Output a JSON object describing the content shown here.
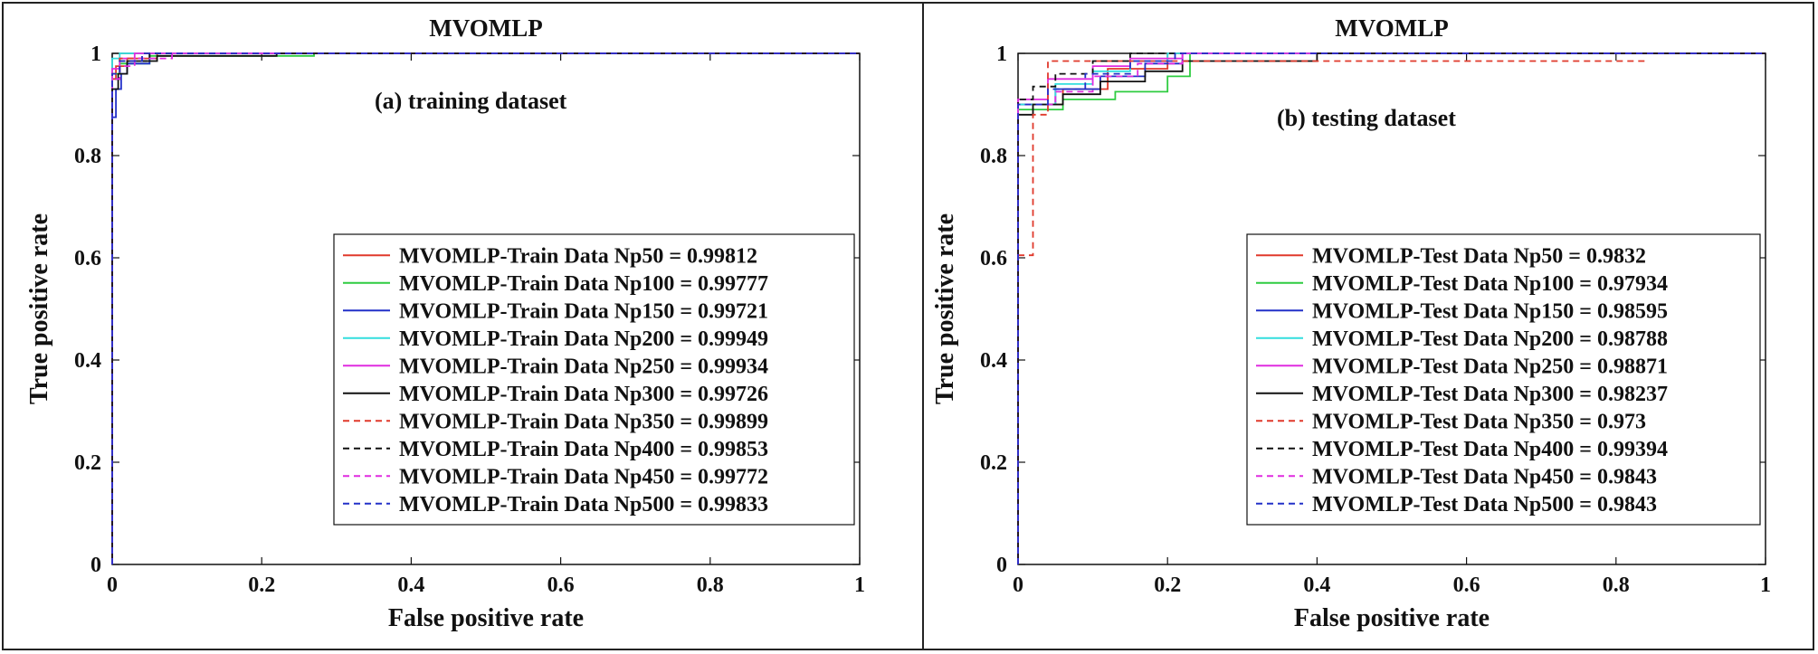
{
  "colors": {
    "Np50": "#e0392b",
    "Np100": "#2ecc40",
    "Np150": "#2230c8",
    "Np200": "#33dede",
    "Np250": "#e02ce0",
    "Np300": "#111111",
    "Np350": "#e0392b",
    "Np400": "#111111",
    "Np450": "#e02ce0",
    "Np500": "#2230c8"
  },
  "chart_data": [
    {
      "type": "line",
      "title": "MVOMLP",
      "annotation": "(a) training dataset",
      "xlabel": "False positive rate",
      "ylabel": "True positive rate",
      "xlim": [
        0,
        1
      ],
      "ylim": [
        0,
        1
      ],
      "xticks": [
        "0",
        "0.2",
        "0.4",
        "0.6",
        "0.8",
        "1"
      ],
      "yticks": [
        "0",
        "0.2",
        "0.4",
        "0.6",
        "0.8",
        "1"
      ],
      "grid": false,
      "legend_position": "bottom-right",
      "series": [
        {
          "name": "MVOMLP-Train Data Np50 = 0.99812",
          "color": "#e0392b",
          "dash": "solid",
          "x": [
            0,
            0,
            0.005,
            0.005,
            0.02,
            0.02,
            0.06,
            0.06,
            1
          ],
          "y": [
            0,
            0.95,
            0.95,
            0.975,
            0.975,
            0.99,
            0.99,
            1,
            1
          ]
        },
        {
          "name": "MVOMLP-Train Data Np100 = 0.99777",
          "color": "#2ecc40",
          "dash": "solid",
          "x": [
            0,
            0,
            0.01,
            0.01,
            0.05,
            0.05,
            0.27,
            0.27,
            1
          ],
          "y": [
            0,
            0.96,
            0.96,
            0.98,
            0.98,
            0.995,
            0.995,
            1,
            1
          ]
        },
        {
          "name": "MVOMLP-Train Data Np150 = 0.99721",
          "color": "#2230c8",
          "dash": "solid",
          "x": [
            0,
            0,
            0.005,
            0.005,
            0.012,
            0.012,
            0.02,
            0.02,
            0.05,
            0.05,
            1
          ],
          "y": [
            0,
            0.875,
            0.875,
            0.93,
            0.93,
            0.96,
            0.96,
            0.98,
            0.98,
            1,
            1
          ]
        },
        {
          "name": "MVOMLP-Train Data Np200 = 0.99949",
          "color": "#33dede",
          "dash": "solid",
          "x": [
            0,
            0,
            0.01,
            0.01,
            1
          ],
          "y": [
            0,
            0.99,
            0.99,
            1,
            1
          ]
        },
        {
          "name": "MVOMLP-Train Data Np250 = 0.99934",
          "color": "#e02ce0",
          "dash": "solid",
          "x": [
            0,
            0,
            0.01,
            0.01,
            0.03,
            0.03,
            1
          ],
          "y": [
            0,
            0.97,
            0.97,
            0.99,
            0.99,
            1,
            1
          ]
        },
        {
          "name": "MVOMLP-Train Data Np300 = 0.99726",
          "color": "#111111",
          "dash": "solid",
          "x": [
            0,
            0,
            0.008,
            0.008,
            0.02,
            0.02,
            0.06,
            0.06,
            0.22,
            0.22,
            1
          ],
          "y": [
            0,
            0.93,
            0.93,
            0.96,
            0.96,
            0.985,
            0.985,
            0.995,
            0.995,
            1,
            1
          ]
        },
        {
          "name": "MVOMLP-Train Data Np350 = 0.99899",
          "color": "#e0392b",
          "dash": "dashed",
          "x": [
            0,
            0,
            0.01,
            0.01,
            0.04,
            0.04,
            1
          ],
          "y": [
            0,
            0.96,
            0.96,
            0.99,
            0.99,
            1,
            1
          ]
        },
        {
          "name": "MVOMLP-Train Data Np400 = 0.99853",
          "color": "#111111",
          "dash": "dashed",
          "x": [
            0,
            0,
            0.01,
            0.01,
            0.05,
            0.05,
            1
          ],
          "y": [
            0,
            0.95,
            0.95,
            0.985,
            0.985,
            1,
            1
          ]
        },
        {
          "name": "MVOMLP-Train Data Np450 = 0.99772",
          "color": "#e02ce0",
          "dash": "dashed",
          "x": [
            0,
            0,
            0.01,
            0.01,
            0.03,
            0.03,
            0.08,
            0.08,
            1
          ],
          "y": [
            0,
            0.95,
            0.95,
            0.975,
            0.975,
            0.99,
            0.99,
            1,
            1
          ]
        },
        {
          "name": "MVOMLP-Train Data Np500 = 0.99833",
          "color": "#2230c8",
          "dash": "dashed",
          "x": [
            0,
            0,
            0.01,
            0.01,
            0.04,
            0.04,
            1
          ],
          "y": [
            0,
            0.96,
            0.96,
            0.985,
            0.985,
            1,
            1
          ]
        }
      ]
    },
    {
      "type": "line",
      "title": "MVOMLP",
      "annotation": "(b) testing dataset",
      "xlabel": "False positive rate",
      "ylabel": "True positive rate",
      "xlim": [
        0,
        1
      ],
      "ylim": [
        0,
        1
      ],
      "xticks": [
        "0",
        "0.2",
        "0.4",
        "0.6",
        "0.8",
        "1"
      ],
      "yticks": [
        "0",
        "0.2",
        "0.4",
        "0.6",
        "0.8",
        "1"
      ],
      "grid": false,
      "legend_position": "bottom-right",
      "series": [
        {
          "name": "MVOMLP-Test Data Np50 = 0.9832",
          "color": "#e0392b",
          "dash": "solid",
          "x": [
            0,
            0,
            0.06,
            0.06,
            0.12,
            0.12,
            0.2,
            0.2,
            1
          ],
          "y": [
            0,
            0.9,
            0.9,
            0.93,
            0.93,
            0.97,
            0.97,
            1,
            1
          ]
        },
        {
          "name": "MVOMLP-Test Data Np100 = 0.97934",
          "color": "#2ecc40",
          "dash": "solid",
          "x": [
            0,
            0,
            0.06,
            0.06,
            0.13,
            0.13,
            0.2,
            0.2,
            0.23,
            0.23,
            1
          ],
          "y": [
            0,
            0.89,
            0.89,
            0.91,
            0.91,
            0.925,
            0.925,
            0.955,
            0.955,
            1,
            1
          ]
        },
        {
          "name": "MVOMLP-Test Data Np150 = 0.98595",
          "color": "#2230c8",
          "dash": "solid",
          "x": [
            0,
            0,
            0.05,
            0.05,
            0.11,
            0.11,
            0.17,
            0.17,
            0.22,
            0.22,
            1
          ],
          "y": [
            0,
            0.9,
            0.9,
            0.93,
            0.93,
            0.955,
            0.955,
            0.98,
            0.98,
            1,
            1
          ]
        },
        {
          "name": "MVOMLP-Test Data Np200 = 0.98788",
          "color": "#33dede",
          "dash": "solid",
          "x": [
            0,
            0,
            0.05,
            0.05,
            0.1,
            0.1,
            0.15,
            0.15,
            0.2,
            0.2,
            1
          ],
          "y": [
            0,
            0.9,
            0.9,
            0.94,
            0.94,
            0.965,
            0.965,
            0.985,
            0.985,
            1,
            1
          ]
        },
        {
          "name": "MVOMLP-Test Data Np250 = 0.98871",
          "color": "#e02ce0",
          "dash": "solid",
          "x": [
            0,
            0,
            0.04,
            0.04,
            0.1,
            0.1,
            0.15,
            0.15,
            0.22,
            0.22,
            1
          ],
          "y": [
            0,
            0.91,
            0.91,
            0.95,
            0.95,
            0.975,
            0.975,
            0.99,
            0.99,
            1,
            1
          ]
        },
        {
          "name": "MVOMLP-Test Data Np300 = 0.98237",
          "color": "#111111",
          "dash": "solid",
          "x": [
            0,
            0,
            0.02,
            0.02,
            0.06,
            0.06,
            0.11,
            0.11,
            0.17,
            0.17,
            0.22,
            0.22,
            0.4,
            0.4,
            1
          ],
          "y": [
            0,
            0.88,
            0.88,
            0.9,
            0.9,
            0.92,
            0.92,
            0.945,
            0.945,
            0.965,
            0.965,
            0.985,
            0.985,
            1,
            1
          ]
        },
        {
          "name": "MVOMLP-Test Data Np350 = 0.973",
          "color": "#e0392b",
          "dash": "dashed",
          "x": [
            0,
            0.02,
            0.02,
            0.04,
            0.04,
            0.4,
            0.4,
            0.84,
            0.84
          ],
          "y": [
            0.605,
            0.605,
            0.88,
            0.88,
            0.985,
            0.985,
            0.985,
            0.985,
            0.985
          ]
        },
        {
          "name": "MVOMLP-Test Data Np400 = 0.99394",
          "color": "#111111",
          "dash": "dashed",
          "x": [
            0,
            0,
            0.02,
            0.02,
            0.05,
            0.05,
            0.1,
            0.1,
            0.15,
            0.15,
            1
          ],
          "y": [
            0,
            0.91,
            0.91,
            0.935,
            0.935,
            0.96,
            0.96,
            0.985,
            0.985,
            1,
            1
          ]
        },
        {
          "name": "MVOMLP-Test Data Np450 = 0.9843",
          "color": "#e02ce0",
          "dash": "dashed",
          "x": [
            0,
            0,
            0.05,
            0.05,
            0.1,
            0.1,
            0.16,
            0.16,
            0.22,
            0.22,
            1
          ],
          "y": [
            0,
            0.9,
            0.9,
            0.925,
            0.925,
            0.955,
            0.955,
            0.98,
            0.98,
            1,
            1
          ]
        },
        {
          "name": "MVOMLP-Test Data Np500 = 0.9843",
          "color": "#2230c8",
          "dash": "dashed",
          "x": [
            0,
            0,
            0.04,
            0.04,
            0.09,
            0.09,
            0.15,
            0.15,
            0.21,
            0.21,
            1
          ],
          "y": [
            0,
            0.9,
            0.9,
            0.93,
            0.93,
            0.96,
            0.96,
            0.985,
            0.985,
            1,
            1
          ]
        }
      ]
    }
  ]
}
